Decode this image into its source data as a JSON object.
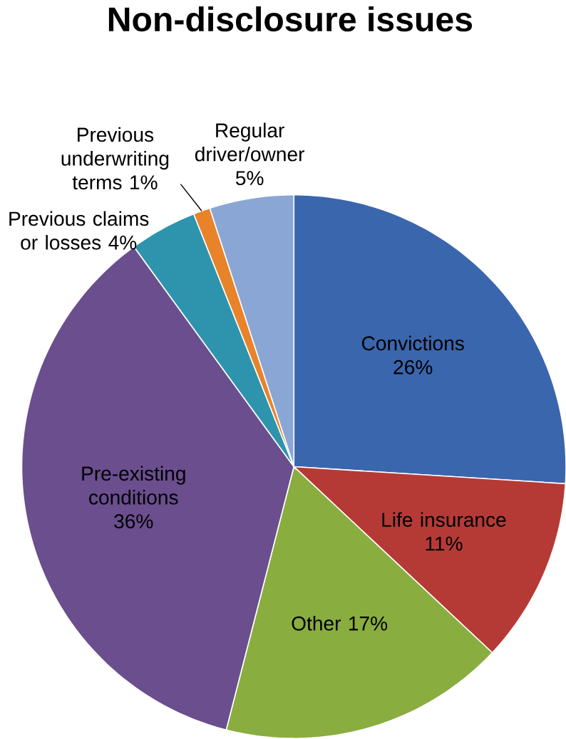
{
  "chart_data": {
    "type": "pie",
    "title": "Non-disclosure issues",
    "categories": [
      "Convictions",
      "Life insurance",
      "Other",
      "Pre-existing conditions",
      "Previous claims or losses",
      "Previous underwriting terms",
      "Regular driver/owner"
    ],
    "values": [
      26,
      11,
      17,
      36,
      4,
      1,
      5
    ],
    "value_labels": [
      "26%",
      "11%",
      "17%",
      "36%",
      "4%",
      "1%",
      "5%"
    ],
    "colors": [
      "#3a66ad",
      "#b53a36",
      "#8aad3f",
      "#6a4e8e",
      "#2e94ad",
      "#e8832a",
      "#8aa6d4"
    ]
  }
}
